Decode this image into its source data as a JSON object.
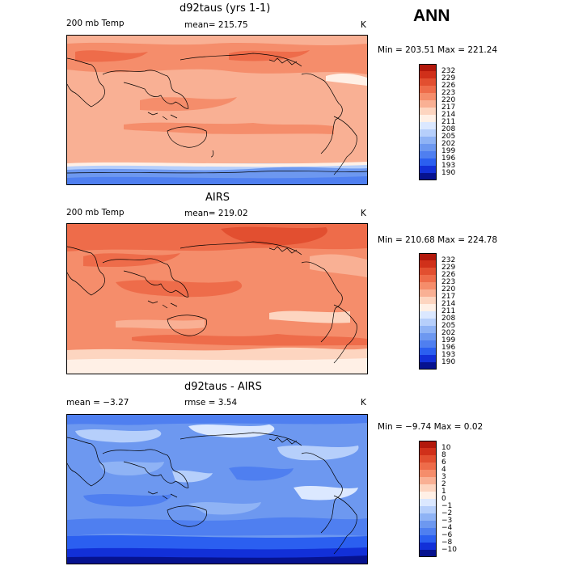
{
  "season": "ANN",
  "panels": [
    {
      "title": "d92taus (yrs 1-1)",
      "left_label": "200 mb Temp",
      "center_label": "mean= 215.75",
      "unit": "K",
      "minmax": "Min = 203.51 Max = 221.24",
      "levels": [
        "232",
        "229",
        "226",
        "223",
        "220",
        "217",
        "214",
        "211",
        "208",
        "205",
        "202",
        "199",
        "196",
        "193",
        "190"
      ],
      "colors": [
        "#b2180b",
        "#d0301a",
        "#e24f30",
        "#ee6c4a",
        "#f58d6b",
        "#f9b094",
        "#fdd5c0",
        "#fff0e6",
        "#dbe8ff",
        "#b6cffb",
        "#8fb3f5",
        "#6d98f0",
        "#4f7ff0",
        "#2b5ff0",
        "#1230d8",
        "#06128f"
      ]
    },
    {
      "title": "AIRS",
      "left_label": "200 mb Temp",
      "center_label": "mean= 219.02",
      "unit": "K",
      "minmax": "Min = 210.68 Max = 224.78",
      "levels": [
        "232",
        "229",
        "226",
        "223",
        "220",
        "217",
        "214",
        "211",
        "208",
        "205",
        "202",
        "199",
        "196",
        "193",
        "190"
      ],
      "colors": [
        "#b2180b",
        "#d0301a",
        "#e24f30",
        "#ee6c4a",
        "#f58d6b",
        "#f9b094",
        "#fdd5c0",
        "#fff0e6",
        "#dbe8ff",
        "#b6cffb",
        "#8fb3f5",
        "#6d98f0",
        "#4f7ff0",
        "#2b5ff0",
        "#1230d8",
        "#06128f"
      ]
    },
    {
      "title": "d92taus - AIRS",
      "left_label": "mean =   −3.27",
      "center_label": "rmse =    3.54",
      "unit": "K",
      "minmax": "Min =  −9.74 Max =   0.02",
      "levels": [
        "10",
        "8",
        "6",
        "4",
        "3",
        "2",
        "1",
        "0",
        "−1",
        "−2",
        "−3",
        "−4",
        "−6",
        "−8",
        "−10"
      ],
      "colors": [
        "#b2180b",
        "#d0301a",
        "#e24f30",
        "#ee6c4a",
        "#f58d6b",
        "#f9b094",
        "#fdd5c0",
        "#fff0e6",
        "#dbe8ff",
        "#b6cffb",
        "#8fb3f5",
        "#6d98f0",
        "#4f7ff0",
        "#2b5ff0",
        "#1230d8",
        "#06128f"
      ]
    }
  ]
}
